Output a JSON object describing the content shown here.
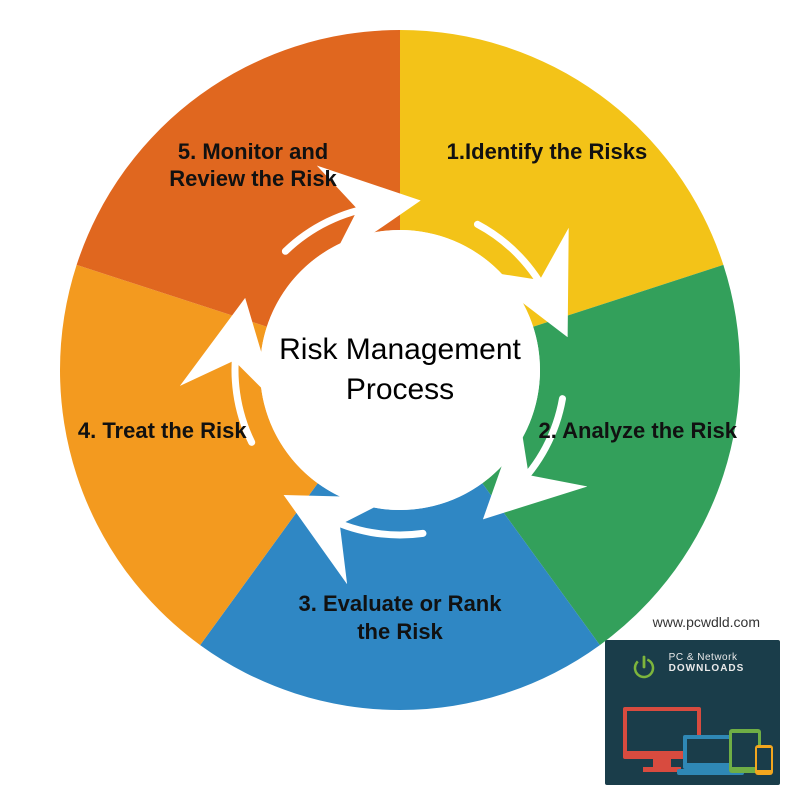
{
  "diagram": {
    "type": "donut-cycle",
    "center_title": "Risk Management Process",
    "center_fontsize": 30,
    "outer_radius": 340,
    "inner_radius": 140,
    "background_color": "#ffffff",
    "segments": [
      {
        "label": "1.Identify the Risks",
        "color": "#f3c318",
        "start_deg": -90,
        "end_deg": -18
      },
      {
        "label": "2. Analyze the Risk",
        "color": "#33a05b",
        "start_deg": -18,
        "end_deg": 54
      },
      {
        "label": "3. Evaluate or Rank the Risk",
        "color": "#2f87c4",
        "start_deg": 54,
        "end_deg": 126
      },
      {
        "label": "4. Treat the Risk",
        "color": "#f39a1f",
        "start_deg": 126,
        "end_deg": 198
      },
      {
        "label": "5. Monitor and Review the Risk",
        "color": "#e0671f",
        "start_deg": 198,
        "end_deg": 270
      }
    ],
    "segment_label_fontsize": 22,
    "segment_label_color": "#111111",
    "arrows": {
      "color": "#ffffff",
      "stroke_width": 7,
      "head_size": 14,
      "radius": 165,
      "span_deg": 36
    }
  },
  "attribution": "www.pcwdld.com",
  "logo": {
    "card_bg": "#1a3d4a",
    "brand_line1": "PC & Network",
    "brand_line2": "DOWNLOADS",
    "power_color": "#7db53c",
    "monitor_color": "#d84b3f",
    "laptop_color": "#2f88b5",
    "tablet_color": "#6fae45",
    "phone_color": "#f3a61e"
  }
}
